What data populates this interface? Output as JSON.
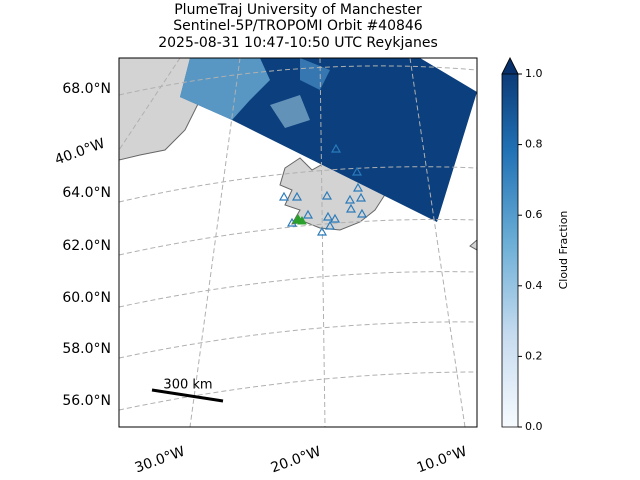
{
  "title": [
    "PlumeTraj    University of Manchester",
    "Sentinel-5P/TROPOMI Orbit #40846",
    "2025-08-31   10:47-10:50 UTC   Reykjanes"
  ],
  "map": {
    "lat_labels": [
      "68.0°N",
      "64.0°N",
      "62.0°N",
      "60.0°N",
      "58.0°N",
      "56.0°N"
    ],
    "lon_labels": [
      "40.0°W",
      "30.0°W",
      "20.0°W",
      "10.0°W"
    ],
    "scale_label": "300 km"
  },
  "colorbar": {
    "label": "Cloud Fraction",
    "lim": [
      0,
      1
    ],
    "ticks": [
      {
        "value": 0,
        "label": "0.0"
      },
      {
        "value": 0.2,
        "label": "0.2"
      },
      {
        "value": 0.4,
        "label": "0.4"
      },
      {
        "value": 0.6,
        "label": "0.6"
      },
      {
        "value": 0.8,
        "label": "0.8"
      },
      {
        "value": 1,
        "label": "1.0"
      }
    ]
  }
}
